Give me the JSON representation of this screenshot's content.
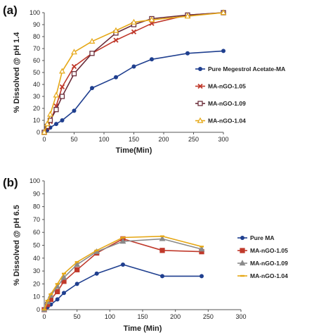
{
  "chart_data": [
    {
      "type": "line",
      "panel_label": "(a)",
      "xlabel": "Time(Min)",
      "ylabel": "% Dissolved @ pH 1.4",
      "xlim": [
        0,
        300
      ],
      "ylim": [
        0,
        100
      ],
      "xticks": [
        0,
        50,
        100,
        150,
        200,
        250,
        300
      ],
      "yticks": [
        0,
        10,
        20,
        30,
        40,
        50,
        60,
        70,
        80,
        90,
        100
      ],
      "grid": false,
      "legend_position": "right",
      "series": [
        {
          "name": "Pure Megestrol Acetate-MA",
          "color": "#1f3f8f",
          "marker": "circle",
          "x": [
            0,
            5,
            10,
            20,
            30,
            50,
            80,
            120,
            150,
            180,
            240,
            300
          ],
          "y": [
            0,
            2,
            4,
            7,
            10,
            18,
            37,
            46,
            55,
            61,
            66,
            68
          ]
        },
        {
          "name": "MA-nGO-1.05",
          "color": "#c0392b",
          "marker": "x",
          "x": [
            0,
            5,
            10,
            20,
            30,
            50,
            80,
            120,
            150,
            180,
            240,
            300
          ],
          "y": [
            0,
            4,
            9,
            22,
            38,
            55,
            66,
            77,
            84,
            91,
            98,
            100
          ]
        },
        {
          "name": "MA-nGO-1.09",
          "color": "#6b2d3a",
          "marker": "square",
          "x": [
            0,
            5,
            10,
            20,
            30,
            50,
            80,
            120,
            150,
            180,
            240,
            300
          ],
          "y": [
            0,
            5,
            10,
            19,
            30,
            49,
            66,
            83,
            90,
            95,
            98,
            100
          ]
        },
        {
          "name": "MA-nGO-1.04",
          "color": "#e6a817",
          "marker": "triangle",
          "x": [
            0,
            5,
            10,
            20,
            30,
            50,
            80,
            120,
            150,
            180,
            240,
            300
          ],
          "y": [
            0,
            7,
            15,
            31,
            51,
            67,
            76,
            85,
            92,
            94,
            97,
            100
          ]
        }
      ]
    },
    {
      "type": "line",
      "panel_label": "(b)",
      "xlabel": "Time (Min)",
      "ylabel": "% Dissolved @ pH 6.5",
      "xlim": [
        0,
        300
      ],
      "ylim": [
        0,
        100
      ],
      "xticks": [
        0,
        50,
        100,
        150,
        200,
        250,
        300
      ],
      "yticks": [
        0,
        10,
        20,
        30,
        40,
        50,
        60,
        70,
        80,
        90,
        100
      ],
      "grid": false,
      "legend_position": "right",
      "series": [
        {
          "name": "Pure MA",
          "color": "#1f3f8f",
          "marker": "circle",
          "x": [
            0,
            5,
            10,
            20,
            30,
            50,
            80,
            120,
            180,
            240
          ],
          "y": [
            0,
            2,
            4,
            8,
            13,
            20,
            28,
            35,
            26,
            26
          ]
        },
        {
          "name": "MA-nGO-1.05",
          "color": "#c0392b",
          "marker": "square",
          "x": [
            0,
            5,
            10,
            20,
            30,
            50,
            80,
            120,
            180,
            240
          ],
          "y": [
            0,
            4,
            8,
            14,
            22,
            31,
            44,
            55,
            46,
            45
          ]
        },
        {
          "name": "MA-nGO-1.09",
          "color": "#8a8a8a",
          "marker": "triangle",
          "x": [
            0,
            5,
            10,
            20,
            30,
            50,
            80,
            120,
            180,
            240
          ],
          "y": [
            0,
            6,
            11,
            18,
            25,
            35,
            45,
            53,
            55,
            47
          ]
        },
        {
          "name": "MA-nGO-1.04",
          "color": "#e6a817",
          "marker": "dash",
          "x": [
            0,
            5,
            10,
            20,
            30,
            50,
            80,
            120,
            180,
            240
          ],
          "y": [
            0,
            7,
            12,
            20,
            28,
            37,
            46,
            56,
            57,
            49
          ]
        }
      ]
    }
  ]
}
